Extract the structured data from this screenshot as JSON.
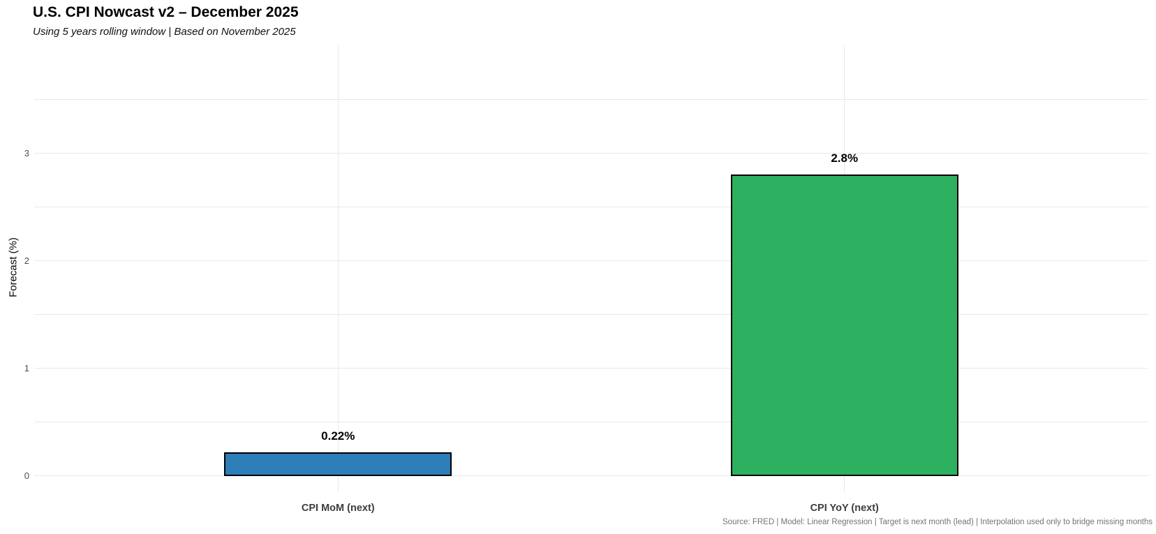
{
  "header": {
    "title": "U.S. CPI Nowcast v2 – December 2025",
    "subtitle": "Using 5 years rolling window | Based on November 2025"
  },
  "footer": {
    "caption": "Source: FRED | Model: Linear Regression | Target is next month (lead) | Interpolation used only to bridge missing months"
  },
  "chart_data": {
    "type": "bar",
    "title": "U.S. CPI Nowcast v2 – December 2025",
    "subtitle": "Using 5 years rolling window | Based on November 2025",
    "categories": [
      "CPI MoM (next)",
      "CPI YoY (next)"
    ],
    "values": [
      0.22,
      2.8
    ],
    "value_labels": [
      "0.22%",
      "2.8%"
    ],
    "bar_colors": [
      "#2E7EB8",
      "#2DB160"
    ],
    "bar_edge_color": "#000000",
    "xlabel": "",
    "ylabel": "Forecast (%)",
    "ylim": [
      -0.15,
      4.0
    ],
    "xlim": [
      -0.6,
      1.6
    ],
    "bar_width_units": 0.45,
    "y_ticks": [
      0,
      1,
      2,
      3
    ],
    "gridlines_y": [
      0,
      0.5,
      1,
      1.5,
      2,
      2.5,
      3,
      3.5
    ],
    "grid": true,
    "grid_color": "#E8E8E8",
    "legend": "none",
    "caption": "Source: FRED | Model: Linear Regression | Target is next month (lead) | Interpolation used only to bridge missing months"
  }
}
